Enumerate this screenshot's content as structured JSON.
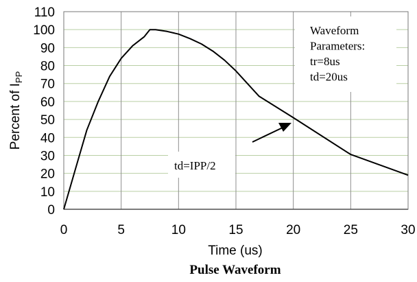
{
  "chart_data": {
    "type": "line",
    "title": "Pulse Waveform",
    "xlabel": "Time (us)",
    "ylabel": "Percent of I",
    "ylabel_sub": "PP",
    "xlim": [
      0,
      30
    ],
    "ylim": [
      0,
      110
    ],
    "x_ticks": [
      0,
      5,
      10,
      15,
      20,
      25,
      30
    ],
    "y_ticks": [
      0,
      10,
      20,
      30,
      40,
      50,
      60,
      70,
      80,
      90,
      100,
      110
    ],
    "grid": true,
    "series": [
      {
        "x": [
          0,
          1,
          2,
          3,
          4,
          5,
          6,
          7,
          7.5,
          8,
          9,
          10,
          11,
          12,
          13,
          14,
          15,
          16,
          17,
          20,
          25,
          30
        ],
        "y": [
          0,
          22,
          44,
          60,
          74,
          84,
          91,
          96,
          100,
          100,
          99,
          97.5,
          95,
          92,
          88,
          83,
          77,
          70,
          63,
          51,
          30.5,
          19
        ]
      }
    ],
    "annotations": {
      "params_lines": [
        "Waveform",
        "Parameters:",
        "tr=8us",
        "td=20us"
      ],
      "td_label": "td=IPP/2"
    }
  }
}
